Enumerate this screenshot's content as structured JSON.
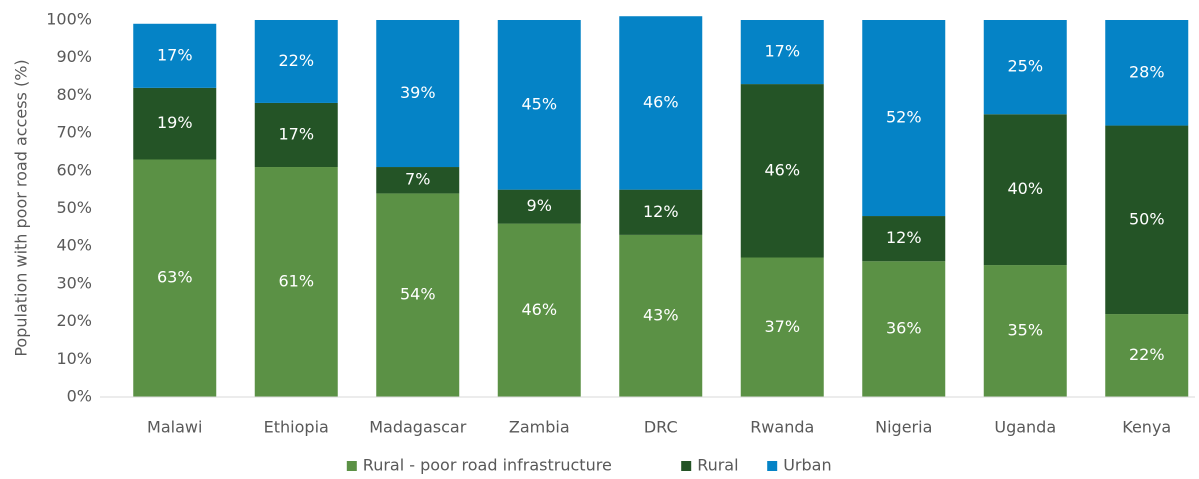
{
  "chart_data": {
    "type": "stacked_bar",
    "ylabel": "Population with poor road access (%)",
    "categories": [
      "Malawi",
      "Ethiopia",
      "Madagascar",
      "Zambia",
      "DRC",
      "Rwanda",
      "Nigeria",
      "Uganda",
      "Kenya"
    ],
    "series": [
      {
        "name": "Rural - poor road infrastructure",
        "color": "#5b9145",
        "values": [
          63,
          61,
          54,
          46,
          43,
          37,
          36,
          35,
          22
        ],
        "value_labels": [
          "63%",
          "61%",
          "54%",
          "46%",
          "43%",
          "37%",
          "36%",
          "35%",
          "22%"
        ]
      },
      {
        "name": "Rural",
        "color": "#245426",
        "values": [
          19,
          17,
          7,
          9,
          12,
          46,
          12,
          40,
          50
        ],
        "value_labels": [
          "19%",
          "17%",
          "7%",
          "9%",
          "12%",
          "46%",
          "12%",
          "40%",
          "50%"
        ]
      },
      {
        "name": "Urban",
        "color": "#0583c6",
        "values": [
          17,
          22,
          39,
          45,
          46,
          17,
          52,
          25,
          28
        ],
        "value_labels": [
          "17%",
          "22%",
          "39%",
          "45%",
          "46%",
          "17%",
          "52%",
          "25%",
          "28%"
        ]
      }
    ],
    "ylim": [
      0,
      100
    ],
    "yticks": [
      {
        "value": 0,
        "label": "0%"
      },
      {
        "value": 10,
        "label": "10%"
      },
      {
        "value": 20,
        "label": "20%"
      },
      {
        "value": 30,
        "label": "30%"
      },
      {
        "value": 40,
        "label": "40%"
      },
      {
        "value": 50,
        "label": "50%"
      },
      {
        "value": 60,
        "label": "60%"
      },
      {
        "value": 70,
        "label": "70%"
      },
      {
        "value": 80,
        "label": "80%"
      },
      {
        "value": 90,
        "label": "90%"
      },
      {
        "value": 100,
        "label": "100%"
      }
    ],
    "legend": "bottom"
  }
}
